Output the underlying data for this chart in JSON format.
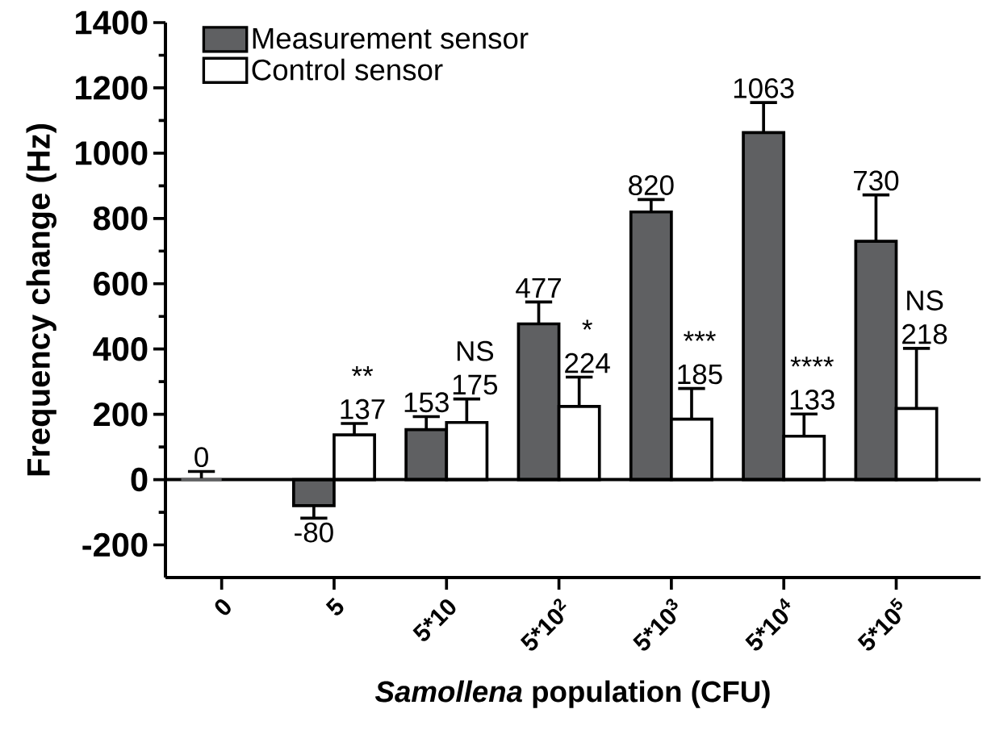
{
  "chart_data": {
    "type": "bar",
    "xlabel": "*Samollena* population (CFU)",
    "ylabel": "Frequency change (Hz)",
    "categories": [
      "0",
      "5",
      "5*10",
      "5*10$^{2}$",
      "5*10$^{3}$",
      "5*10$^{4}$",
      "5*10$^{5}$"
    ],
    "series": [
      {
        "name": "Measurement sensor",
        "color": "#5f6062",
        "values": [
          0,
          -80,
          153,
          477,
          820,
          1063,
          730
        ],
        "errors": [
          [
            0,
            25
          ],
          [
            -118,
            -80
          ],
          [
            153,
            193
          ],
          [
            477,
            544
          ],
          [
            820,
            858
          ],
          [
            1063,
            1155
          ],
          [
            730,
            872
          ]
        ]
      },
      {
        "name": "Control sensor",
        "color": "#ffffff",
        "values": [
          null,
          137,
          175,
          224,
          185,
          133,
          218
        ],
        "errors": [
          null,
          [
            137,
            172
          ],
          [
            175,
            247
          ],
          [
            224,
            314
          ],
          [
            185,
            279
          ],
          [
            133,
            201
          ],
          [
            218,
            402
          ]
        ]
      }
    ],
    "ylim": [
      -300,
      1400
    ],
    "yticks": [
      -200,
      0,
      200,
      400,
      600,
      800,
      1000,
      1200,
      1400
    ],
    "ref_lines": [
      {
        "axis": "y",
        "value": 0
      }
    ],
    "data_labels": true,
    "legend": "top left",
    "grid": false,
    "annotations": [
      {
        "text": "**",
        "x": "5",
        "y": 137
      },
      {
        "text": "NS",
        "x": "5*10",
        "y": 175
      },
      {
        "text": "*",
        "x": "5*10$^{2}$",
        "y": 224
      },
      {
        "text": "***",
        "x": "5*10$^{3}$",
        "y": 185
      },
      {
        "text": "****",
        "x": "5*10$^{4}$",
        "y": 133
      },
      "NS"
    ]
  }
}
